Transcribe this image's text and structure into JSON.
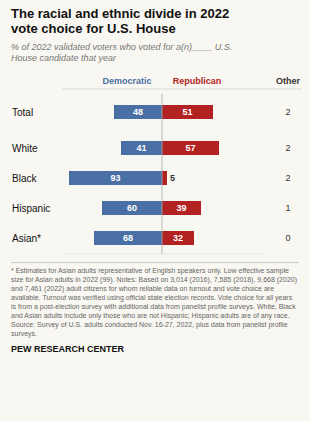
{
  "chart_data": {
    "type": "bar",
    "orientation": "horizontal",
    "title": "The racial and ethnic divide in 2022\nvote choice for U.S. House",
    "subtitle": "% of 2022 validated voters who voted for a(n)____ U.S.\nHouse candidate that year",
    "categories": [
      "Total",
      "White",
      "Black",
      "Hispanic",
      "Asian*"
    ],
    "series": [
      {
        "name": "Democratic",
        "color": "#4a6fa5",
        "values": [
          48,
          41,
          93,
          60,
          68
        ]
      },
      {
        "name": "Republican",
        "color": "#b22222",
        "values": [
          51,
          57,
          5,
          39,
          32
        ]
      },
      {
        "name": "Other",
        "type": "label",
        "color": "#333333",
        "values": [
          2,
          2,
          2,
          1,
          0
        ]
      }
    ],
    "xlim": [
      -100,
      100
    ],
    "data_labels": true,
    "tick_labels": false,
    "grid": false,
    "footnotes": [
      "* Estimates for Asian adults representative of English speakers only. Low effective sample size for Asian adults in 2022 (99). Notes: Based on 3,014 (2016), 7,585 (2018), 9,668 (2020) and 7,461 (2022) adult citizens for whom reliable data on turnout and vote choice are available. Turnout was verified using official state election records. Vote choice for all years is from a post-election survey with additional data from panelist profile surveys. White, Black and Asian adults include only those who are not Hispanic; Hispanic adults are of any race.",
      "Source: Survey of U.S. adults conducted Nov. 16-27, 2022, plus data from panelist profile surveys."
    ],
    "source": "PEW RESEARCH CENTER"
  }
}
